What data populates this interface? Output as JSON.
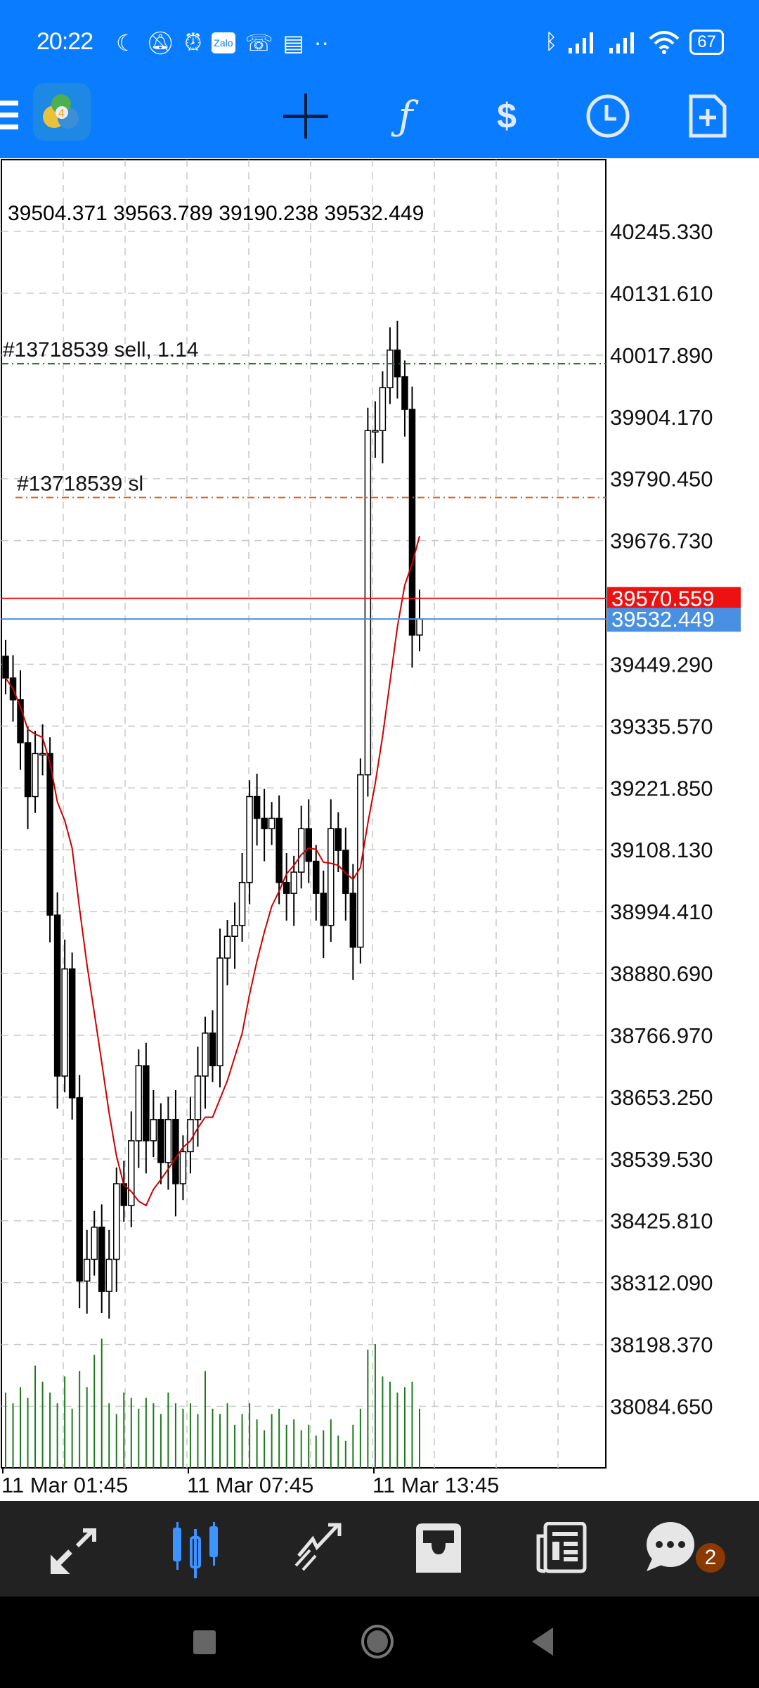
{
  "status_bar": {
    "time": "20:22",
    "battery": "67",
    "icons": [
      "moon-icon",
      "vibrate-off-icon",
      "alarm-icon",
      "zalo-icon",
      "missed-call-icon",
      "notes-icon",
      "more-dots-icon",
      "bluetooth-icon",
      "signal-icon",
      "signal-icon",
      "wifi-icon",
      "battery-icon"
    ],
    "zalo_label": "Zalo"
  },
  "toolbar": {
    "icons": [
      "menu-icon",
      "metatrader-logo",
      "crosshair-icon",
      "indicators-icon",
      "trade-icon",
      "timeframe-icon",
      "new-order-icon"
    ],
    "accent": "#0a7cff"
  },
  "chart_data": {
    "type": "candlestick",
    "ohlc_header": "39504.371 39563.789 39190.238 39532.449",
    "y_ticks": [
      "40245.330",
      "40131.610",
      "40017.890",
      "39904.170",
      "39790.450",
      "39676.730",
      "39449.290",
      "39335.570",
      "39221.850",
      "39108.130",
      "38994.410",
      "38880.690",
      "38766.970",
      "38653.250",
      "38539.530",
      "38425.810",
      "38312.090",
      "38198.370",
      "38084.650"
    ],
    "ylim": [
      38084.65,
      40245.33
    ],
    "x_labels": [
      "11 Mar 01:45",
      "11 Mar 07:45",
      "11 Mar 13:45"
    ],
    "closes": [
      39424,
      39384,
      39305,
      39206,
      39285,
      39285,
      38988,
      38692,
      38889,
      38652,
      38315,
      38355,
      38414,
      38296,
      38355,
      38494,
      38454,
      38573,
      38711,
      38573,
      38612,
      38533,
      38612,
      38494,
      38553,
      38612,
      38692,
      38771,
      38711,
      38909,
      38949,
      38969,
      39048,
      39206,
      39166,
      39147,
      39166,
      39048,
      39028,
      39067,
      39147,
      39087,
      39028,
      38969,
      39147,
      39107,
      39028,
      38929,
      39246,
      39879,
      39879,
      39958,
      40027,
      39978,
      39918,
      39503,
      39532.449
    ],
    "volumes": [
      70,
      60,
      75,
      65,
      95,
      80,
      70,
      60,
      85,
      55,
      90,
      75,
      105,
      120,
      60,
      50,
      70,
      65,
      55,
      65,
      60,
      50,
      70,
      60,
      55,
      60,
      50,
      90,
      55,
      50,
      60,
      40,
      50,
      60,
      45,
      35,
      50,
      55,
      40,
      45,
      35,
      40,
      30,
      35,
      45,
      30,
      25,
      40,
      55,
      110,
      115,
      85,
      80,
      70,
      75,
      80,
      55
    ],
    "moving_average": {
      "color": "#cc0000"
    },
    "candle_color": "#000000",
    "volume_color": "#1a7a1a",
    "lines": [
      {
        "label": "#13718539 sell, 1.14",
        "price": 40002,
        "color": "#1a6b1a",
        "style": "dash-dot"
      },
      {
        "label": "#13718539 sl",
        "price": 39756,
        "color": "#e05a1a",
        "style": "dash-dot"
      },
      {
        "label": "39570.559",
        "price": 39570.559,
        "color": "#ee1111",
        "style": "solid"
      },
      {
        "label": "39532.449",
        "price": 39532.449,
        "color": "#4a90e2",
        "style": "solid"
      }
    ]
  },
  "bottom_nav": {
    "items": [
      "quotes-icon",
      "chart-icon",
      "trade-icon",
      "history-icon",
      "news-icon",
      "messages-icon"
    ],
    "active": "chart-icon",
    "messages_badge": "2"
  }
}
